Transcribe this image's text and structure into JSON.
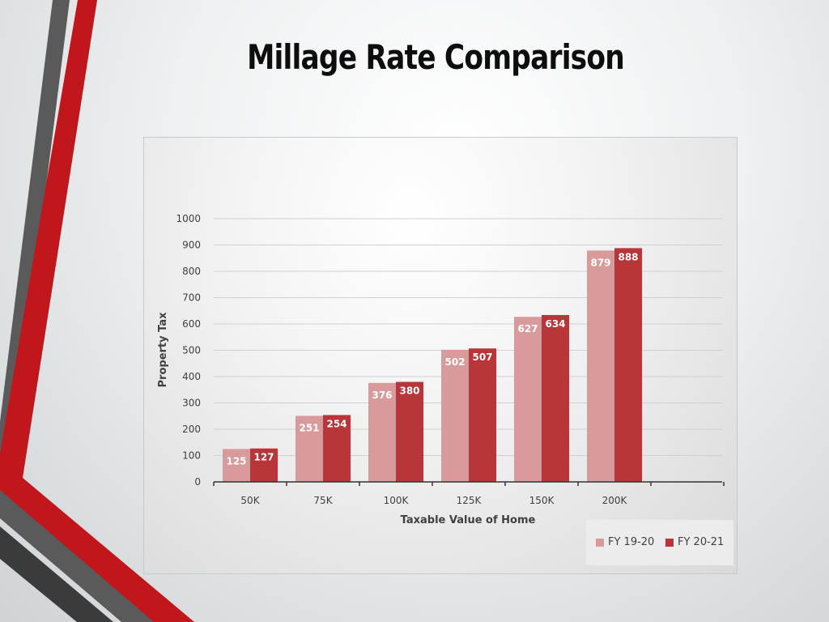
{
  "slide": {
    "title": "Millage Rate Comparison"
  },
  "colors": {
    "decor_red": "#c0161c",
    "decor_gray": "#5a5a5a",
    "decor_dark": "#3b3b3b"
  },
  "chart_data": {
    "type": "bar",
    "title": "",
    "xlabel": "Taxable Value of Home",
    "ylabel": "Property Tax",
    "categories": [
      "50K",
      "75K",
      "100K",
      "125K",
      "150K",
      "200K"
    ],
    "series": [
      {
        "name": "FY 19-20",
        "color": "#d99a9c",
        "values": [
          125,
          251,
          376,
          502,
          627,
          879
        ]
      },
      {
        "name": "FY 20-21",
        "color": "#b8353a",
        "values": [
          127,
          254,
          380,
          507,
          634,
          888
        ]
      }
    ],
    "ylim": [
      0,
      1000
    ],
    "yticks": [
      0,
      100,
      200,
      300,
      400,
      500,
      600,
      700,
      800,
      900,
      1000
    ],
    "grid": true,
    "legend_position": "bottom-right",
    "data_labels": true
  }
}
